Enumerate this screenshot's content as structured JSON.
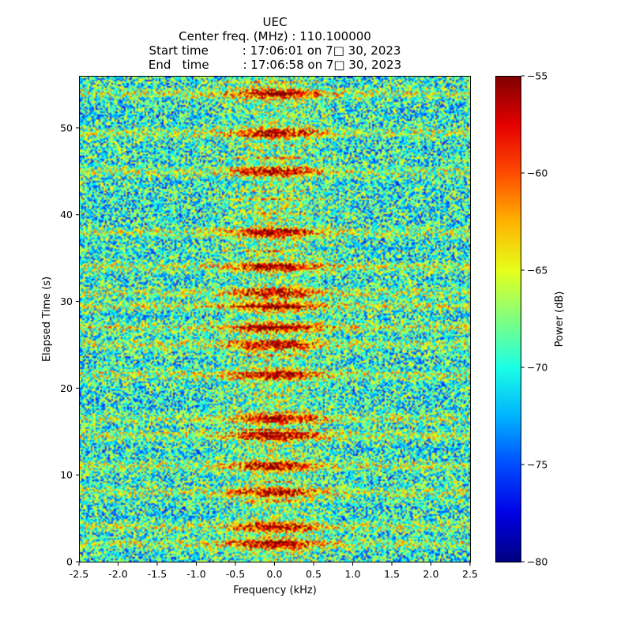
{
  "chart_data": {
    "type": "heatmap",
    "title_lines": [
      "UEC",
      "Center freq. (MHz) : 110.100000",
      "Start time         : 17:06:01 on 7□ 30, 2023",
      "End   time         : 17:06:58 on 7□ 30, 2023"
    ],
    "xlabel": "Frequency (kHz)",
    "ylabel": "Elapsed Time (s)",
    "xlim": [
      -2.5,
      2.5
    ],
    "ylim": [
      0,
      56
    ],
    "x_ticks": [
      -2.5,
      -2.0,
      -1.5,
      -1.0,
      -0.5,
      0.0,
      0.5,
      1.0,
      1.5,
      2.0,
      2.5
    ],
    "x_tick_labels": [
      "-2.5",
      "-2.0",
      "-1.5",
      "-1.0",
      "-0.5",
      "0.0",
      "0.5",
      "1.0",
      "1.5",
      "2.0",
      "2.5"
    ],
    "y_ticks": [
      0,
      10,
      20,
      30,
      40,
      50
    ],
    "y_tick_labels": [
      "0",
      "10",
      "20",
      "30",
      "40",
      "50"
    ],
    "colorbar": {
      "label": "Power (dB)",
      "min": -80,
      "max": -55,
      "ticks": [
        -55,
        -60,
        -65,
        -70,
        -75,
        -80
      ],
      "tick_labels": [
        "−55",
        "−60",
        "−65",
        "−70",
        "−75",
        "−80"
      ],
      "colormap": "jet"
    },
    "signal": {
      "center_kHz": 0.0,
      "strong_band_times_s": [
        2,
        4,
        8,
        11,
        14.5,
        16.5,
        21.5,
        25,
        27,
        29.5,
        31,
        34,
        38,
        45,
        49.5,
        54
      ]
    }
  }
}
